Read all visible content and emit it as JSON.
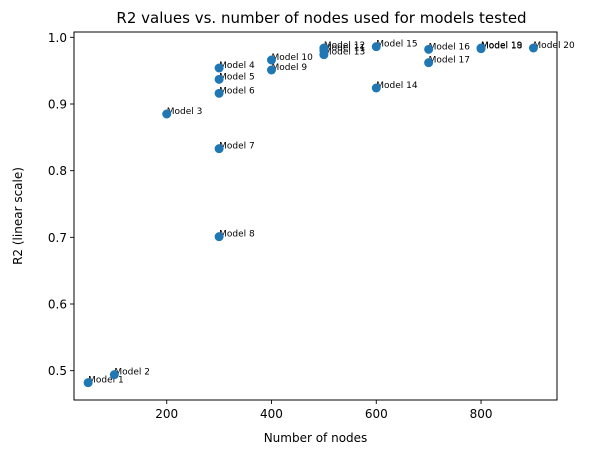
{
  "chart_data": {
    "type": "scatter",
    "title": "R2 values vs. number of nodes used for models tested",
    "xlabel": "Number of nodes",
    "ylabel": "R2 (linear scale)",
    "xlim": [
      23,
      945
    ],
    "ylim": [
      0.456,
      1.008
    ],
    "xticks": [
      200,
      400,
      600,
      800
    ],
    "yticks": [
      0.5,
      0.6,
      0.7,
      0.8,
      0.9,
      1.0
    ],
    "grid": false,
    "marker_color": "#1f77b4",
    "points": [
      {
        "label": "Model 1",
        "x": 50,
        "y": 0.482
      },
      {
        "label": "Model 2",
        "x": 100,
        "y": 0.494
      },
      {
        "label": "Model 3",
        "x": 200,
        "y": 0.885
      },
      {
        "label": "Model 4",
        "x": 300,
        "y": 0.954
      },
      {
        "label": "Model 5",
        "x": 300,
        "y": 0.937
      },
      {
        "label": "Model 6",
        "x": 300,
        "y": 0.916
      },
      {
        "label": "Model 7",
        "x": 300,
        "y": 0.833
      },
      {
        "label": "Model 8",
        "x": 300,
        "y": 0.701
      },
      {
        "label": "Model 9",
        "x": 400,
        "y": 0.951
      },
      {
        "label": "Model 10",
        "x": 400,
        "y": 0.966
      },
      {
        "label": "Model 11",
        "x": 500,
        "y": 0.98
      },
      {
        "label": "Model 12",
        "x": 500,
        "y": 0.984
      },
      {
        "label": "Model 13",
        "x": 500,
        "y": 0.974
      },
      {
        "label": "Model 14",
        "x": 600,
        "y": 0.924
      },
      {
        "label": "Model 15",
        "x": 600,
        "y": 0.986
      },
      {
        "label": "Model 16",
        "x": 700,
        "y": 0.982
      },
      {
        "label": "Model 17",
        "x": 700,
        "y": 0.962
      },
      {
        "label": "Model 18",
        "x": 800,
        "y": 0.983
      },
      {
        "label": "Model 19",
        "x": 800,
        "y": 0.984
      },
      {
        "label": "Model 20",
        "x": 900,
        "y": 0.984
      }
    ]
  }
}
